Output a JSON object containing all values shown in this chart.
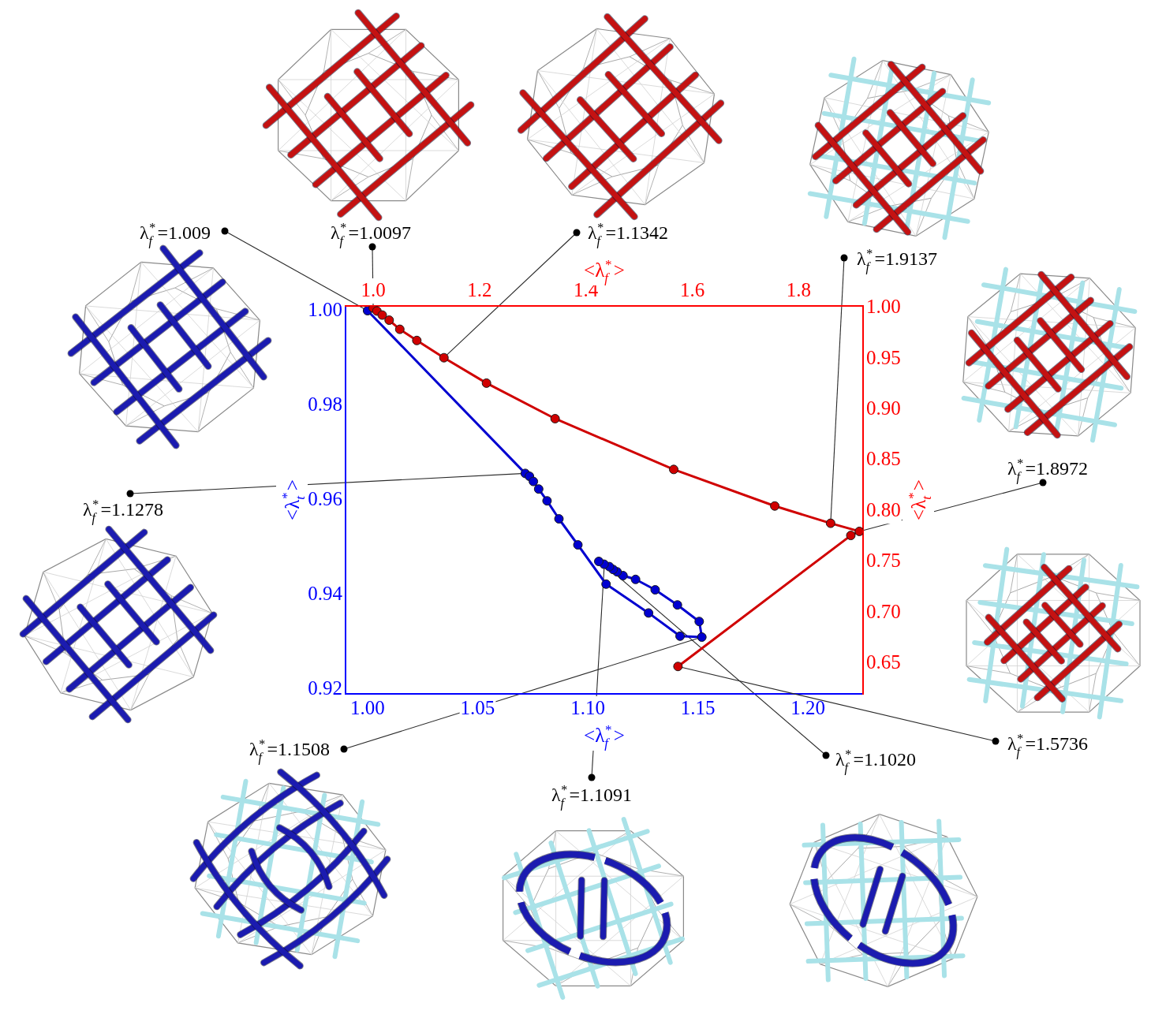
{
  "chart_data": [
    {
      "type": "line",
      "xlabel": "<λ$_{f}$$^{*}$>",
      "ylabel": "<λ$_{t}$$^{*}$>",
      "xlim": [
        0.99,
        1.225
      ],
      "xticks": [
        {
          "value": 1,
          "label": "1.00"
        },
        1.05,
        {
          "value": 1.1,
          "label": "1.10"
        },
        1.15,
        {
          "value": 1.2,
          "label": "1.20"
        }
      ],
      "ylim": [
        0.919,
        1.001
      ],
      "yticks": [
        0.92,
        0.94,
        0.96,
        0.98,
        {
          "value": 1,
          "label": "1.00"
        }
      ],
      "marker": "circle",
      "series": [
        {
          "color": "#0000d0",
          "x": [
            1.0,
            1.0716,
            1.0735,
            1.0753,
            1.0777,
            1.0815,
            1.0869,
            1.0955,
            1.1083,
            1.1276,
            1.1419,
            1.1518,
            1.1506,
            1.1407,
            1.1306,
            1.1217,
            1.116,
            1.1133,
            1.1115,
            1.1098,
            1.1074,
            1.105
          ],
          "values": [
            1.0,
            0.9656,
            0.965,
            0.9639,
            0.9623,
            0.9598,
            0.956,
            0.9505,
            0.9422,
            0.9361,
            0.9312,
            0.931,
            0.9343,
            0.9378,
            0.941,
            0.9432,
            0.944,
            0.9448,
            0.9453,
            0.9459,
            0.9464,
            0.947
          ]
        }
      ],
      "annotations": [
        {
          "text": "λ$_{f}$$^{*}$=1.009",
          "x": 1.0,
          "y": 1.0
        },
        {
          "text": "λ$_{f}$$^{*}$=1.1278",
          "x": 1.0716,
          "y": 0.9656
        },
        {
          "text": "λ$_{f}$$^{*}$=1.1508",
          "x": 1.1518,
          "y": 0.931
        },
        {
          "text": "λ$_{f}$$^{*}$=1.1091",
          "x": 1.1075,
          "y": 0.9462
        },
        {
          "text": "λ$_{f}$$^{*}$=1.1020",
          "x": 1.1086,
          "y": 0.9459
        }
      ]
    },
    {
      "type": "line",
      "xlabel": "<λ$_{f}$$^{*}$>",
      "ylabel": "<λ$_{t}$$^{*}$>",
      "xlim": [
        0.948,
        1.921
      ],
      "xticks": [
        {
          "value": 1,
          "label": "1.0"
        },
        1.2,
        1.4,
        1.6,
        1.8
      ],
      "ylim": [
        0.62,
        1.002
      ],
      "yticks": [
        0.65,
        {
          "value": 0.7,
          "label": "0.70"
        },
        0.75,
        {
          "value": 0.8,
          "label": "0.80"
        },
        0.85,
        {
          "value": 0.9,
          "label": "0.90"
        },
        0.95,
        {
          "value": 1,
          "label": "1.00"
        }
      ],
      "marker": "circle",
      "series": [
        {
          "color": "#d00000",
          "x": [
            1.0,
            1.007,
            1.017,
            1.03,
            1.05,
            1.082,
            1.133,
            1.213,
            1.342,
            1.565,
            1.755,
            1.86,
            1.914,
            1.898,
            1.573
          ],
          "values": [
            1.0,
            0.997,
            0.993,
            0.988,
            0.979,
            0.968,
            0.951,
            0.926,
            0.891,
            0.841,
            0.805,
            0.788,
            0.78,
            0.776,
            0.647
          ]
        }
      ],
      "annotations": [
        {
          "text": "λ$_{f}$$^{*}$=1.0097",
          "x": 1.0,
          "y": 1.0
        },
        {
          "text": "λ$_{f}$$^{*}$=1.1342",
          "x": 1.133,
          "y": 0.951
        },
        {
          "text": "λ$_{f}$$^{*}$=1.9137",
          "x": 1.86,
          "y": 0.788
        },
        {
          "text": "λ$_{f}$$^{*}$=1.8972",
          "x": 1.914,
          "y": 0.78
        },
        {
          "text": "λ$_{f}$$^{*}$=1.5736",
          "x": 1.573,
          "y": 0.647
        }
      ]
    }
  ]
}
